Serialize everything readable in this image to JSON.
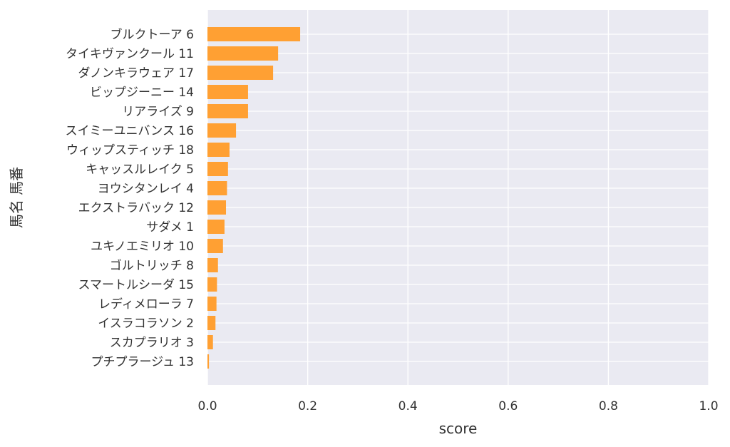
{
  "chart_data": {
    "type": "bar",
    "orientation": "horizontal",
    "title": "",
    "xlabel": "score",
    "ylabel": "馬名 馬番",
    "xlim": [
      0,
      1.0
    ],
    "xticks": [
      "0.0",
      "0.2",
      "0.4",
      "0.6",
      "0.8",
      "1.0"
    ],
    "grid": true,
    "legend": "none",
    "bar_color": "#ffa033",
    "background_color": "#eaeaf2",
    "categories": [
      "ブルクトーア 6",
      "タイキヴァンクール 11",
      "ダノンキラウェア 17",
      "ビップジーニー 14",
      "リアライズ 9",
      "スイミーユニバンス 16",
      "ウィップスティッチ 18",
      "キャッスルレイク 5",
      "ヨウシタンレイ 4",
      "エクストラバック 12",
      "サダメ 1",
      "ユキノエミリオ 10",
      "ゴルトリッチ 8",
      "スマートルシーダ 15",
      "レディメローラ 7",
      "イスラコラソン 2",
      "スカプラリオ 3",
      "プチプラージュ 13"
    ],
    "values": [
      0.185,
      0.141,
      0.131,
      0.081,
      0.081,
      0.057,
      0.044,
      0.041,
      0.039,
      0.037,
      0.034,
      0.031,
      0.021,
      0.019,
      0.018,
      0.016,
      0.011,
      0.003
    ]
  }
}
